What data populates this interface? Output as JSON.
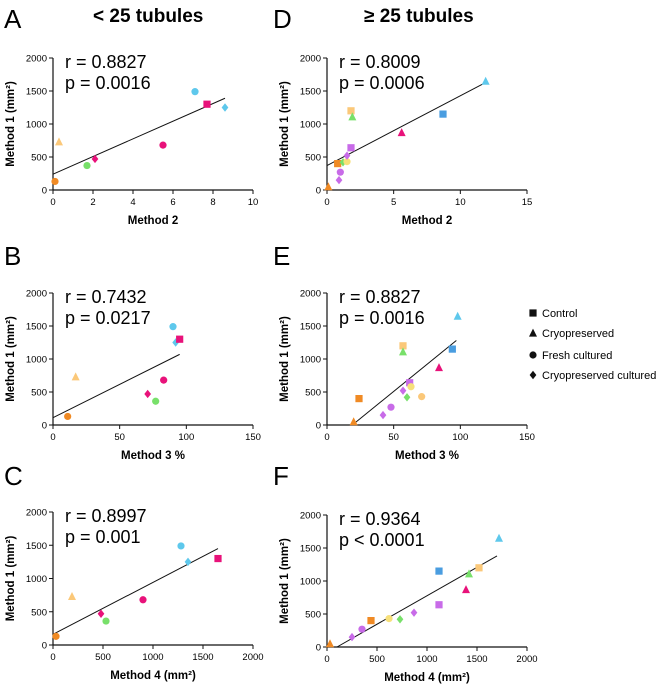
{
  "column_titles": {
    "left": "< 25 tubules",
    "right": "≥ 25 tubules"
  },
  "legend": {
    "items": [
      {
        "label": "Control",
        "shape": "square"
      },
      {
        "label": "Cryopreserved",
        "shape": "triangle"
      },
      {
        "label": "Fresh cultured",
        "shape": "circle"
      },
      {
        "label": "Cryopreserved cultured",
        "shape": "diamond"
      }
    ]
  },
  "colors": {
    "orange": "#f08a24",
    "light_orange": "#fbc879",
    "yellow": "#f7e07a",
    "green": "#78e06a",
    "magenta": "#e8127a",
    "violet": "#c86be8",
    "sky": "#5ec8ec",
    "blue": "#4a9de0"
  },
  "chart_data": [
    {
      "panel": "A",
      "type": "scatter",
      "stats": {
        "r": "r = 0.8827",
        "p": "p = 0.0016"
      },
      "xlabel": "Method 2",
      "ylabel": "Method 1 (mm²)",
      "xlim": [
        0,
        10
      ],
      "ylim": [
        0,
        2000
      ],
      "xticks": [
        "0",
        "2",
        "4",
        "6",
        "8",
        "10"
      ],
      "yticks": [
        "0",
        "500",
        "1000",
        "1500",
        "2000"
      ],
      "points": [
        {
          "x": 0.1,
          "y": 130,
          "shape": "circle",
          "color": "orange"
        },
        {
          "x": 0.3,
          "y": 730,
          "shape": "triangle",
          "color": "light_orange"
        },
        {
          "x": 1.7,
          "y": 370,
          "shape": "circle",
          "color": "green"
        },
        {
          "x": 2.1,
          "y": 470,
          "shape": "diamond",
          "color": "magenta"
        },
        {
          "x": 5.5,
          "y": 680,
          "shape": "circle",
          "color": "magenta"
        },
        {
          "x": 7.1,
          "y": 1490,
          "shape": "circle",
          "color": "sky"
        },
        {
          "x": 7.7,
          "y": 1300,
          "shape": "square",
          "color": "magenta"
        },
        {
          "x": 8.6,
          "y": 1250,
          "shape": "diamond",
          "color": "sky"
        }
      ],
      "fit": {
        "x1": 0,
        "y1": 240,
        "x2": 8.6,
        "y2": 1390
      }
    },
    {
      "panel": "B",
      "type": "scatter",
      "stats": {
        "r": "r = 0.7432",
        "p": "p = 0.0217"
      },
      "xlabel": "Method 3  %",
      "ylabel": "Method 1 (mm²)",
      "xlim": [
        0,
        150
      ],
      "ylim": [
        0,
        2000
      ],
      "xticks": [
        "0",
        "50",
        "100",
        "150"
      ],
      "yticks": [
        "0",
        "500",
        "1000",
        "1500",
        "2000"
      ],
      "points": [
        {
          "x": 11,
          "y": 130,
          "shape": "circle",
          "color": "orange"
        },
        {
          "x": 17,
          "y": 730,
          "shape": "triangle",
          "color": "light_orange"
        },
        {
          "x": 71,
          "y": 470,
          "shape": "diamond",
          "color": "magenta"
        },
        {
          "x": 77,
          "y": 360,
          "shape": "circle",
          "color": "green"
        },
        {
          "x": 83,
          "y": 680,
          "shape": "circle",
          "color": "magenta"
        },
        {
          "x": 90,
          "y": 1490,
          "shape": "circle",
          "color": "sky"
        },
        {
          "x": 92,
          "y": 1250,
          "shape": "diamond",
          "color": "sky"
        },
        {
          "x": 95,
          "y": 1300,
          "shape": "square",
          "color": "magenta"
        }
      ],
      "fit": {
        "x1": 0,
        "y1": 110,
        "x2": 95,
        "y2": 1070
      }
    },
    {
      "panel": "C",
      "type": "scatter",
      "stats": {
        "r": "r = 0.8997",
        "p": "p = 0.001"
      },
      "xlabel": "Method 4  (mm²)",
      "ylabel": "Method 1  (mm²)",
      "xlim": [
        0,
        2000
      ],
      "ylim": [
        0,
        2000
      ],
      "xticks": [
        "0",
        "500",
        "1000",
        "1500",
        "2000"
      ],
      "yticks": [
        "0",
        "500",
        "1000",
        "1500",
        "2000"
      ],
      "points": [
        {
          "x": 30,
          "y": 130,
          "shape": "circle",
          "color": "orange"
        },
        {
          "x": 190,
          "y": 730,
          "shape": "triangle",
          "color": "light_orange"
        },
        {
          "x": 480,
          "y": 470,
          "shape": "diamond",
          "color": "magenta"
        },
        {
          "x": 530,
          "y": 360,
          "shape": "circle",
          "color": "green"
        },
        {
          "x": 900,
          "y": 680,
          "shape": "circle",
          "color": "magenta"
        },
        {
          "x": 1280,
          "y": 1490,
          "shape": "circle",
          "color": "sky"
        },
        {
          "x": 1350,
          "y": 1250,
          "shape": "diamond",
          "color": "sky"
        },
        {
          "x": 1650,
          "y": 1300,
          "shape": "square",
          "color": "magenta"
        }
      ],
      "fit": {
        "x1": 0,
        "y1": 160,
        "x2": 1650,
        "y2": 1450
      }
    },
    {
      "panel": "D",
      "type": "scatter",
      "stats": {
        "r": "r = 0.8009",
        "p": "p = 0.0006"
      },
      "xlabel": "Method 2",
      "ylabel": "Method 1 (mm²)",
      "xlim": [
        0,
        15
      ],
      "ylim": [
        0,
        2000
      ],
      "xticks": [
        "0",
        "5",
        "10",
        "15"
      ],
      "yticks": [
        "0",
        "500",
        "1000",
        "1500",
        "2000"
      ],
      "points": [
        {
          "x": 0.1,
          "y": 50,
          "shape": "triangle",
          "color": "orange"
        },
        {
          "x": 0.8,
          "y": 400,
          "shape": "square",
          "color": "orange"
        },
        {
          "x": 0.9,
          "y": 150,
          "shape": "diamond",
          "color": "violet"
        },
        {
          "x": 1.0,
          "y": 270,
          "shape": "circle",
          "color": "violet"
        },
        {
          "x": 1.2,
          "y": 420,
          "shape": "diamond",
          "color": "green"
        },
        {
          "x": 1.5,
          "y": 430,
          "shape": "circle",
          "color": "yellow"
        },
        {
          "x": 1.5,
          "y": 520,
          "shape": "diamond",
          "color": "violet"
        },
        {
          "x": 1.8,
          "y": 640,
          "shape": "square",
          "color": "violet"
        },
        {
          "x": 1.8,
          "y": 1200,
          "shape": "square",
          "color": "light_orange"
        },
        {
          "x": 1.9,
          "y": 1110,
          "shape": "triangle",
          "color": "green"
        },
        {
          "x": 5.6,
          "y": 870,
          "shape": "triangle",
          "color": "magenta"
        },
        {
          "x": 8.7,
          "y": 1150,
          "shape": "square",
          "color": "blue"
        },
        {
          "x": 11.9,
          "y": 1650,
          "shape": "triangle",
          "color": "sky"
        }
      ],
      "fit": {
        "x1": 0,
        "y1": 370,
        "x2": 12,
        "y2": 1640
      }
    },
    {
      "panel": "E",
      "type": "scatter",
      "stats": {
        "r": "r = 0.8827",
        "p": "p = 0.0016"
      },
      "xlabel": "Method 3  %",
      "ylabel": "Method 1 (mm²)",
      "xlim": [
        0,
        150
      ],
      "ylim": [
        0,
        2000
      ],
      "xticks": [
        "0",
        "50",
        "100",
        "150"
      ],
      "yticks": [
        "0",
        "500",
        "1000",
        "1500",
        "2000"
      ],
      "points": [
        {
          "x": 20,
          "y": 50,
          "shape": "triangle",
          "color": "orange"
        },
        {
          "x": 24,
          "y": 400,
          "shape": "square",
          "color": "orange"
        },
        {
          "x": 42,
          "y": 150,
          "shape": "diamond",
          "color": "violet"
        },
        {
          "x": 48,
          "y": 270,
          "shape": "circle",
          "color": "violet"
        },
        {
          "x": 57,
          "y": 1200,
          "shape": "square",
          "color": "light_orange"
        },
        {
          "x": 57,
          "y": 1110,
          "shape": "triangle",
          "color": "green"
        },
        {
          "x": 57,
          "y": 520,
          "shape": "diamond",
          "color": "violet"
        },
        {
          "x": 60,
          "y": 420,
          "shape": "diamond",
          "color": "green"
        },
        {
          "x": 62,
          "y": 640,
          "shape": "square",
          "color": "violet"
        },
        {
          "x": 63,
          "y": 580,
          "shape": "circle",
          "color": "yellow"
        },
        {
          "x": 71,
          "y": 430,
          "shape": "circle",
          "color": "light_orange"
        },
        {
          "x": 84,
          "y": 870,
          "shape": "triangle",
          "color": "magenta"
        },
        {
          "x": 94,
          "y": 1150,
          "shape": "square",
          "color": "blue"
        },
        {
          "x": 98,
          "y": 1650,
          "shape": "triangle",
          "color": "sky"
        }
      ],
      "fit": {
        "x1": 19,
        "y1": 0,
        "x2": 97,
        "y2": 1280
      }
    },
    {
      "panel": "F",
      "type": "scatter",
      "stats": {
        "r": "r = 0.9364",
        "p": "p < 0.0001"
      },
      "xlabel": "Method 4  (mm²)",
      "ylabel": "Method 1  (mm²)",
      "xlim": [
        0,
        2000
      ],
      "ylim": [
        0,
        2000
      ],
      "xticks": [
        "0",
        "500",
        "1000",
        "1500",
        "2000"
      ],
      "yticks": [
        "0",
        "500",
        "1000",
        "1500",
        "2000"
      ],
      "points": [
        {
          "x": 30,
          "y": 50,
          "shape": "triangle",
          "color": "orange"
        },
        {
          "x": 250,
          "y": 150,
          "shape": "diamond",
          "color": "violet"
        },
        {
          "x": 350,
          "y": 270,
          "shape": "circle",
          "color": "violet"
        },
        {
          "x": 440,
          "y": 400,
          "shape": "square",
          "color": "orange"
        },
        {
          "x": 620,
          "y": 430,
          "shape": "circle",
          "color": "yellow"
        },
        {
          "x": 730,
          "y": 420,
          "shape": "diamond",
          "color": "green"
        },
        {
          "x": 870,
          "y": 520,
          "shape": "diamond",
          "color": "violet"
        },
        {
          "x": 1120,
          "y": 640,
          "shape": "square",
          "color": "violet"
        },
        {
          "x": 1120,
          "y": 1150,
          "shape": "square",
          "color": "blue"
        },
        {
          "x": 1390,
          "y": 870,
          "shape": "triangle",
          "color": "magenta"
        },
        {
          "x": 1420,
          "y": 1110,
          "shape": "triangle",
          "color": "green"
        },
        {
          "x": 1520,
          "y": 1200,
          "shape": "square",
          "color": "light_orange"
        },
        {
          "x": 1720,
          "y": 1650,
          "shape": "triangle",
          "color": "sky"
        }
      ],
      "fit": {
        "x1": 100,
        "y1": 0,
        "x2": 1700,
        "y2": 1380
      }
    }
  ]
}
